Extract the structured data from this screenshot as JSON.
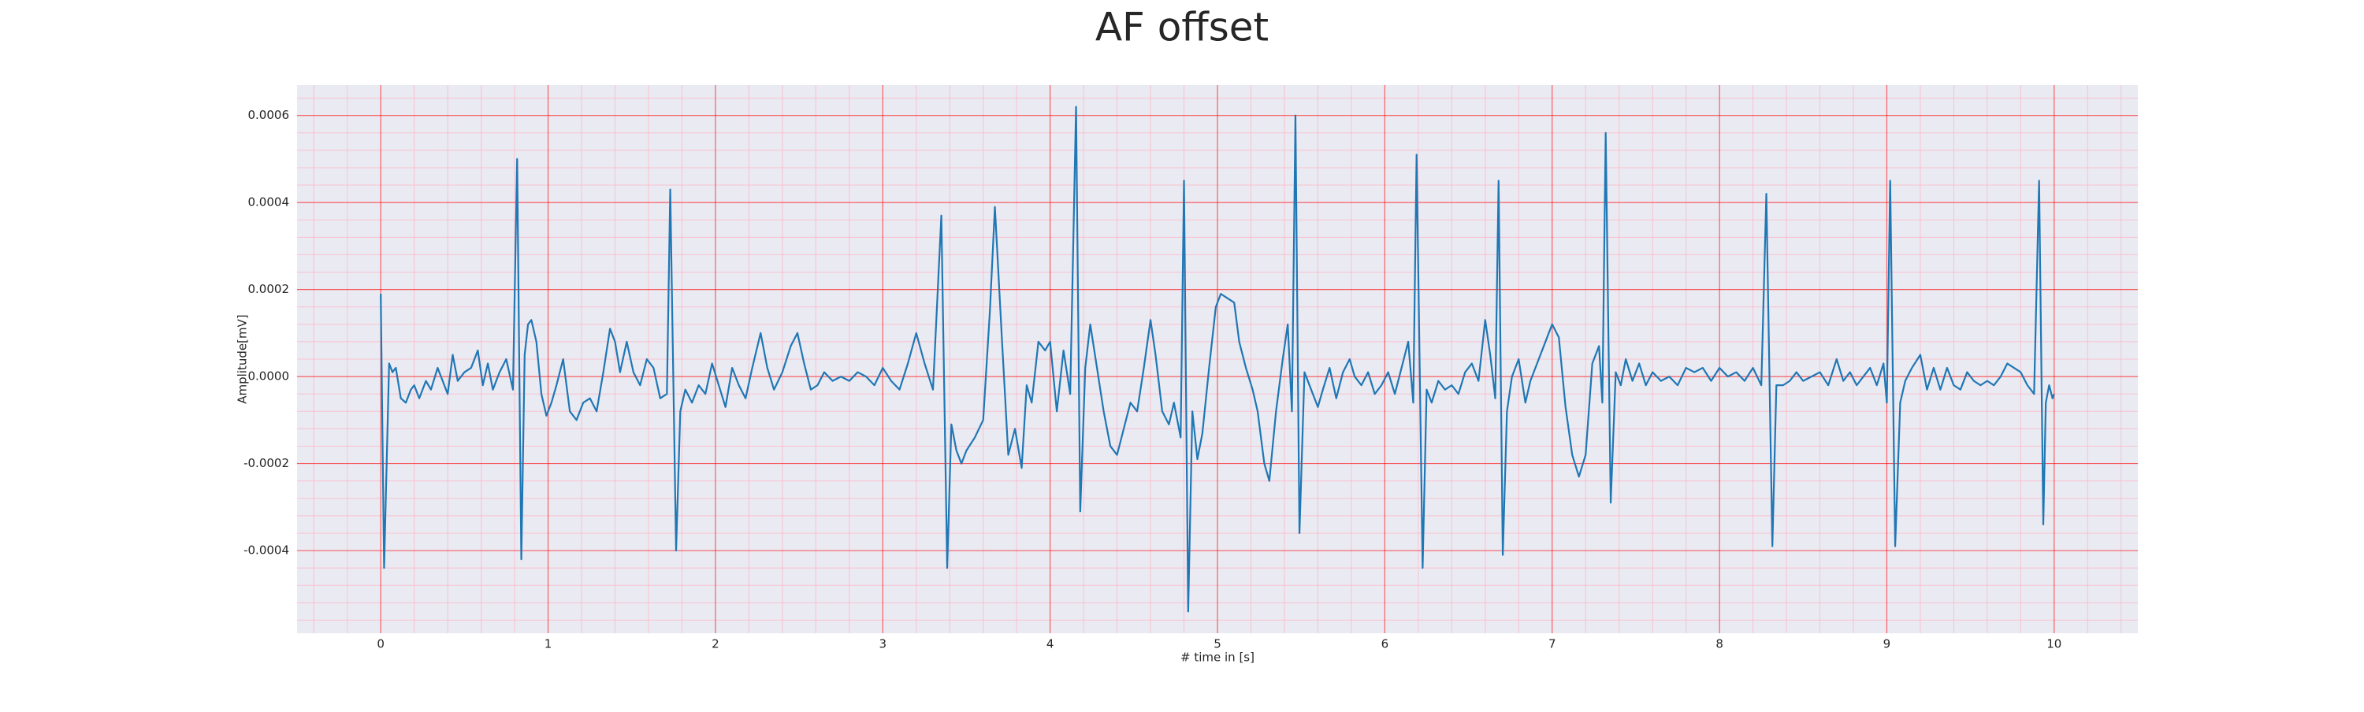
{
  "chart_data": {
    "type": "line",
    "title": "AF offset",
    "x_label": "# time in [s]",
    "y_label": "Amplitude[mV]",
    "color": "#1f77b4",
    "background": "#eaeaf2",
    "grid": true,
    "grid_color": "#ff0000",
    "minor_grid": true,
    "minor_grid_color": "#ffb0c0",
    "minor_divisions": 5,
    "xlim": [
      -0.5,
      10.5
    ],
    "ylim": [
      -0.00059,
      0.00067
    ],
    "xticks": [
      0,
      1,
      2,
      3,
      4,
      5,
      6,
      7,
      8,
      9,
      10
    ],
    "yticks": [
      -0.0004,
      -0.0002,
      {
        "value": 0,
        "label": "0.0000"
      },
      0.0002,
      0.0004,
      0.0006
    ],
    "x": [
      0.0,
      0.02,
      0.05,
      0.07,
      0.09,
      0.12,
      0.15,
      0.18,
      0.2,
      0.23,
      0.27,
      0.3,
      0.34,
      0.37,
      0.4,
      0.43,
      0.46,
      0.5,
      0.54,
      0.58,
      0.61,
      0.64,
      0.67,
      0.71,
      0.75,
      0.79,
      0.815,
      0.84,
      0.86,
      0.88,
      0.9,
      0.93,
      0.96,
      0.99,
      1.02,
      1.05,
      1.09,
      1.13,
      1.17,
      1.21,
      1.25,
      1.29,
      1.33,
      1.37,
      1.4,
      1.43,
      1.47,
      1.51,
      1.55,
      1.59,
      1.63,
      1.67,
      1.71,
      1.73,
      1.765,
      1.79,
      1.82,
      1.86,
      1.9,
      1.94,
      1.98,
      2.02,
      2.06,
      2.1,
      2.14,
      2.18,
      2.22,
      2.27,
      2.31,
      2.35,
      2.4,
      2.45,
      2.49,
      2.53,
      2.57,
      2.61,
      2.65,
      2.7,
      2.75,
      2.8,
      2.85,
      2.9,
      2.95,
      3.0,
      3.05,
      3.1,
      3.15,
      3.2,
      3.25,
      3.3,
      3.35,
      3.385,
      3.41,
      3.44,
      3.47,
      3.5,
      3.55,
      3.6,
      3.64,
      3.67,
      3.71,
      3.75,
      3.79,
      3.83,
      3.86,
      3.89,
      3.93,
      3.97,
      4.0,
      4.04,
      4.08,
      4.12,
      4.155,
      4.18,
      4.21,
      4.24,
      4.28,
      4.32,
      4.36,
      4.4,
      4.44,
      4.48,
      4.52,
      4.56,
      4.6,
      4.63,
      4.67,
      4.71,
      4.74,
      4.78,
      4.8,
      4.825,
      4.85,
      4.88,
      4.91,
      4.95,
      4.99,
      5.02,
      5.06,
      5.1,
      5.13,
      5.17,
      5.21,
      5.24,
      5.28,
      5.31,
      5.35,
      5.39,
      5.42,
      5.445,
      5.466,
      5.49,
      5.52,
      5.56,
      5.6,
      5.63,
      5.67,
      5.71,
      5.75,
      5.79,
      5.82,
      5.86,
      5.9,
      5.94,
      5.98,
      6.02,
      6.06,
      6.1,
      6.14,
      6.17,
      6.19,
      6.226,
      6.25,
      6.28,
      6.32,
      6.36,
      6.4,
      6.44,
      6.48,
      6.52,
      6.56,
      6.6,
      6.63,
      6.66,
      6.68,
      6.705,
      6.73,
      6.76,
      6.8,
      6.84,
      6.87,
      6.91,
      6.95,
      7.0,
      7.04,
      7.08,
      7.12,
      7.16,
      7.2,
      7.24,
      7.28,
      7.3,
      7.32,
      7.35,
      7.38,
      7.41,
      7.44,
      7.48,
      7.52,
      7.56,
      7.6,
      7.65,
      7.7,
      7.75,
      7.8,
      7.85,
      7.9,
      7.95,
      8.0,
      8.05,
      8.1,
      8.15,
      8.2,
      8.25,
      8.28,
      8.316,
      8.34,
      8.38,
      8.42,
      8.46,
      8.5,
      8.55,
      8.6,
      8.65,
      8.7,
      8.74,
      8.78,
      8.82,
      8.86,
      8.9,
      8.94,
      8.98,
      9.0,
      9.02,
      9.05,
      9.08,
      9.11,
      9.15,
      9.2,
      9.24,
      9.28,
      9.32,
      9.36,
      9.4,
      9.44,
      9.48,
      9.52,
      9.56,
      9.6,
      9.64,
      9.68,
      9.72,
      9.76,
      9.8,
      9.84,
      9.88,
      9.91,
      9.935,
      9.95,
      9.97,
      9.99,
      10.0
    ],
    "values": [
      0.00019,
      -0.00044,
      3e-05,
      1e-05,
      2e-05,
      -5e-05,
      -6e-05,
      -3e-05,
      -2e-05,
      -5e-05,
      -1e-05,
      -3e-05,
      2e-05,
      -1e-05,
      -4e-05,
      5e-05,
      -1e-05,
      1e-05,
      2e-05,
      6e-05,
      -2e-05,
      3e-05,
      -3e-05,
      1e-05,
      4e-05,
      -3e-05,
      0.0005,
      -0.00042,
      5e-05,
      0.00012,
      0.00013,
      8e-05,
      -4e-05,
      -9e-05,
      -6e-05,
      -2e-05,
      4e-05,
      -8e-05,
      -0.0001,
      -6e-05,
      -5e-05,
      -8e-05,
      1e-05,
      0.00011,
      8e-05,
      1e-05,
      8e-05,
      1e-05,
      -2e-05,
      4e-05,
      2e-05,
      -5e-05,
      -4e-05,
      0.00043,
      -0.0004,
      -8e-05,
      -3e-05,
      -6e-05,
      -2e-05,
      -4e-05,
      3e-05,
      -2e-05,
      -7e-05,
      2e-05,
      -2e-05,
      -5e-05,
      2e-05,
      0.0001,
      2e-05,
      -3e-05,
      1e-05,
      7e-05,
      0.0001,
      3e-05,
      -3e-05,
      -2e-05,
      1e-05,
      -1e-05,
      0,
      -1e-05,
      1e-05,
      0,
      -2e-05,
      2e-05,
      -1e-05,
      -3e-05,
      3e-05,
      0.0001,
      3e-05,
      -3e-05,
      0.00037,
      -0.00044,
      -0.00011,
      -0.00017,
      -0.0002,
      -0.00017,
      -0.00014,
      -0.0001,
      0.00015,
      0.00039,
      0.0001,
      -0.00018,
      -0.00012,
      -0.00021,
      -2e-05,
      -6e-05,
      8e-05,
      6e-05,
      8e-05,
      -8e-05,
      6e-05,
      -4e-05,
      0.00062,
      -0.00031,
      2e-05,
      0.00012,
      2e-05,
      -8e-05,
      -0.00016,
      -0.00018,
      -0.00012,
      -6e-05,
      -8e-05,
      2e-05,
      0.00013,
      5e-05,
      -8e-05,
      -0.00011,
      -6e-05,
      -0.00014,
      0.00045,
      -0.00054,
      -8e-05,
      -0.00019,
      -0.00013,
      2e-05,
      0.00016,
      0.00019,
      0.00018,
      0.00017,
      8e-05,
      2e-05,
      -3e-05,
      -8e-05,
      -0.0002,
      -0.00024,
      -8e-05,
      4e-05,
      0.00012,
      -8e-05,
      0.0006,
      -0.00036,
      1e-05,
      -3e-05,
      -7e-05,
      -3e-05,
      2e-05,
      -5e-05,
      1e-05,
      4e-05,
      0,
      -2e-05,
      1e-05,
      -4e-05,
      -2e-05,
      1e-05,
      -4e-05,
      2e-05,
      8e-05,
      -6e-05,
      0.00051,
      -0.00044,
      -3e-05,
      -6e-05,
      -1e-05,
      -3e-05,
      -2e-05,
      -4e-05,
      1e-05,
      3e-05,
      -1e-05,
      0.00013,
      5e-05,
      -5e-05,
      0.00045,
      -0.00041,
      -8e-05,
      0,
      4e-05,
      -6e-05,
      -1e-05,
      3e-05,
      7e-05,
      0.00012,
      9e-05,
      -7e-05,
      -0.00018,
      -0.00023,
      -0.00018,
      3e-05,
      7e-05,
      -6e-05,
      0.00056,
      -0.00029,
      1e-05,
      -2e-05,
      4e-05,
      -1e-05,
      3e-05,
      -2e-05,
      1e-05,
      -1e-05,
      0,
      -2e-05,
      2e-05,
      1e-05,
      2e-05,
      -1e-05,
      2e-05,
      0,
      1e-05,
      -1e-05,
      2e-05,
      -2e-05,
      0.00042,
      -0.00039,
      -2e-05,
      -2e-05,
      -1e-05,
      1e-05,
      -1e-05,
      0,
      1e-05,
      -2e-05,
      4e-05,
      -1e-05,
      1e-05,
      -2e-05,
      0,
      2e-05,
      -2e-05,
      3e-05,
      -6e-05,
      0.00045,
      -0.00039,
      -6e-05,
      -1e-05,
      2e-05,
      5e-05,
      -3e-05,
      2e-05,
      -3e-05,
      2e-05,
      -2e-05,
      -3e-05,
      1e-05,
      -1e-05,
      -2e-05,
      -1e-05,
      -2e-05,
      0,
      3e-05,
      2e-05,
      1e-05,
      -2e-05,
      -4e-05,
      0.00045,
      -0.00034,
      -6e-05,
      -2e-05,
      -5e-05,
      -4e-05
    ]
  }
}
